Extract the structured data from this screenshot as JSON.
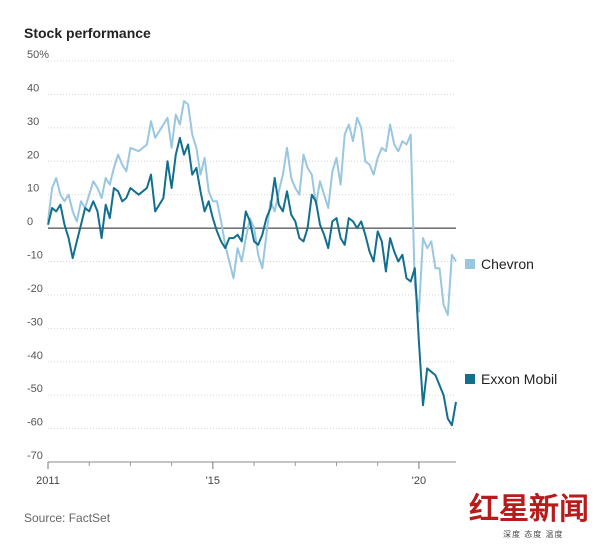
{
  "chart_data": {
    "type": "line",
    "title": "Stock performance",
    "source": "Source: FactSet",
    "ylim": [
      -70,
      50
    ],
    "xlim": [
      2011.0,
      2020.9
    ],
    "y_ticks": [
      50,
      40,
      30,
      20,
      10,
      0,
      -10,
      -20,
      -30,
      -40,
      -50,
      -60,
      -70
    ],
    "y_tick_labels": [
      "50%",
      "40",
      "30",
      "20",
      "10",
      "0",
      "-10",
      "-20",
      "-30",
      "-40",
      "-50",
      "-60",
      "-70"
    ],
    "x_ticks": [
      2011,
      2015,
      2020
    ],
    "x_tick_labels": [
      "2011",
      "'15",
      "'20"
    ],
    "minor_x_ticks": [
      2012,
      2013,
      2014,
      2016,
      2017,
      2018,
      2019
    ],
    "series": [
      {
        "name": "Chevron",
        "color": "#9ac7e0",
        "x": [
          2011.0,
          2011.1,
          2011.2,
          2011.3,
          2011.4,
          2011.5,
          2011.6,
          2011.7,
          2011.8,
          2011.9,
          2012.0,
          2012.1,
          2012.2,
          2012.3,
          2012.4,
          2012.5,
          2012.6,
          2012.7,
          2012.8,
          2012.9,
          2013.0,
          2013.2,
          2013.4,
          2013.5,
          2013.6,
          2013.8,
          2013.9,
          2014.0,
          2014.1,
          2014.2,
          2014.3,
          2014.4,
          2014.5,
          2014.6,
          2014.7,
          2014.8,
          2014.9,
          2015.0,
          2015.1,
          2015.2,
          2015.3,
          2015.4,
          2015.5,
          2015.6,
          2015.7,
          2015.8,
          2015.9,
          2016.0,
          2016.1,
          2016.2,
          2016.3,
          2016.4,
          2016.5,
          2016.6,
          2016.7,
          2016.8,
          2016.9,
          2017.0,
          2017.1,
          2017.2,
          2017.3,
          2017.4,
          2017.5,
          2017.6,
          2017.7,
          2017.8,
          2017.9,
          2018.0,
          2018.1,
          2018.2,
          2018.3,
          2018.4,
          2018.5,
          2018.6,
          2018.7,
          2018.8,
          2018.9,
          2019.0,
          2019.1,
          2019.2,
          2019.3,
          2019.4,
          2019.5,
          2019.6,
          2019.7,
          2019.8,
          2019.9,
          2020.0,
          2020.1,
          2020.2,
          2020.3,
          2020.4,
          2020.5,
          2020.6,
          2020.7,
          2020.8,
          2020.9
        ],
        "values": [
          2,
          12,
          15,
          10,
          8,
          10,
          5,
          2,
          8,
          6,
          10,
          14,
          12,
          9,
          15,
          13,
          18,
          22,
          19,
          17,
          24,
          23,
          25,
          32,
          27,
          31,
          33,
          24,
          34,
          31,
          38,
          37,
          28,
          24,
          16,
          21,
          11,
          8,
          8,
          2,
          -5,
          -10,
          -15,
          -6,
          -10,
          -3,
          3,
          0,
          -8,
          -12,
          -2,
          8,
          5,
          11,
          16,
          24,
          15,
          12,
          10,
          22,
          18,
          16,
          7,
          14,
          10,
          6,
          17,
          21,
          13,
          28,
          31,
          26,
          33,
          30,
          20,
          19,
          16,
          21,
          24,
          23,
          31,
          25,
          23,
          26,
          25,
          28,
          -17,
          -25,
          -3,
          -6,
          -4,
          -12,
          -12,
          -23,
          -26,
          -8,
          -10
        ],
        "end_label": "Chevron"
      },
      {
        "name": "Exxon Mobil",
        "color": "#126f8e",
        "x": [
          2011.0,
          2011.1,
          2011.2,
          2011.3,
          2011.4,
          2011.5,
          2011.6,
          2011.7,
          2011.8,
          2011.9,
          2012.0,
          2012.1,
          2012.2,
          2012.3,
          2012.4,
          2012.5,
          2012.6,
          2012.7,
          2012.8,
          2012.9,
          2013.0,
          2013.2,
          2013.4,
          2013.5,
          2013.6,
          2013.8,
          2013.9,
          2014.0,
          2014.1,
          2014.2,
          2014.3,
          2014.4,
          2014.5,
          2014.6,
          2014.7,
          2014.8,
          2014.9,
          2015.0,
          2015.1,
          2015.2,
          2015.3,
          2015.4,
          2015.5,
          2015.6,
          2015.7,
          2015.8,
          2015.9,
          2016.0,
          2016.1,
          2016.2,
          2016.3,
          2016.4,
          2016.5,
          2016.6,
          2016.7,
          2016.8,
          2016.9,
          2017.0,
          2017.1,
          2017.2,
          2017.3,
          2017.4,
          2017.5,
          2017.6,
          2017.7,
          2017.8,
          2017.9,
          2018.0,
          2018.1,
          2018.2,
          2018.3,
          2018.4,
          2018.5,
          2018.6,
          2018.7,
          2018.8,
          2018.9,
          2019.0,
          2019.1,
          2019.2,
          2019.3,
          2019.4,
          2019.5,
          2019.6,
          2019.7,
          2019.8,
          2019.9,
          2020.0,
          2020.1,
          2020.2,
          2020.3,
          2020.4,
          2020.5,
          2020.6,
          2020.7,
          2020.8,
          2020.9
        ],
        "values": [
          1,
          6,
          5,
          7,
          1,
          -3,
          -9,
          -4,
          1,
          6,
          5,
          8,
          5,
          -3,
          7,
          3,
          12,
          11,
          8,
          9,
          12,
          10,
          12,
          16,
          5,
          9,
          20,
          12,
          22,
          27,
          22,
          25,
          16,
          18,
          11,
          5,
          8,
          3,
          -1,
          -4,
          -6,
          -3,
          -3,
          -2,
          -4,
          5,
          2,
          -4,
          -5,
          -2,
          3,
          6,
          15,
          7,
          5,
          11,
          4,
          2,
          -3,
          -4,
          0,
          10,
          8,
          1,
          -2,
          -6,
          2,
          3,
          -3,
          -5,
          3,
          2,
          0,
          2,
          -2,
          -7,
          -10,
          -1,
          -4,
          -13,
          -3,
          -7,
          -10,
          -8,
          -15,
          -16,
          -12,
          -34,
          -53,
          -42,
          -43,
          -44,
          -47,
          -50,
          -57,
          -59,
          -52
        ],
        "end_label": "Exxon Mobil"
      }
    ],
    "zero_line": true,
    "legend_placement": "right, at series end"
  },
  "watermark": {
    "brand": "红星新闻",
    "tagline": "深度 态度 温度",
    "color": "#b71c1c"
  }
}
